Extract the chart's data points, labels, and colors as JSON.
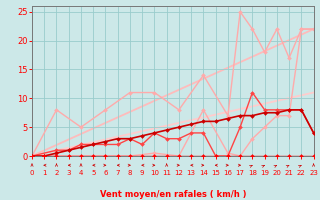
{
  "xlabel": "Vent moyen/en rafales ( km/h )",
  "bg_color": "#cce8e8",
  "grid_color": "#99cccc",
  "x_min": 0,
  "x_max": 23,
  "y_min": 0,
  "y_max": 26,
  "x_ticks": [
    0,
    1,
    2,
    3,
    4,
    5,
    6,
    7,
    8,
    9,
    10,
    11,
    12,
    13,
    14,
    15,
    16,
    17,
    18,
    19,
    20,
    21,
    22,
    23
  ],
  "y_ticks": [
    0,
    5,
    10,
    15,
    20,
    25
  ],
  "series": [
    {
      "x": [
        0,
        23
      ],
      "y": [
        0,
        22
      ],
      "color": "#ffbbbb",
      "lw": 1.3,
      "marker": null,
      "ms": 0,
      "zorder": 1
    },
    {
      "x": [
        0,
        23
      ],
      "y": [
        0,
        11
      ],
      "color": "#ffcccc",
      "lw": 1.3,
      "marker": null,
      "ms": 0,
      "zorder": 1
    },
    {
      "x": [
        0,
        2,
        4,
        6,
        8,
        10,
        12,
        14,
        16,
        17,
        18,
        19,
        20,
        21,
        22,
        23
      ],
      "y": [
        0,
        8,
        5,
        8,
        11,
        11,
        8,
        14,
        7,
        25,
        22,
        18,
        22,
        17,
        22,
        22
      ],
      "color": "#ffaaaa",
      "lw": 1.0,
      "marker": "D",
      "ms": 2,
      "zorder": 2
    },
    {
      "x": [
        0,
        2,
        4,
        6,
        8,
        10,
        12,
        14,
        16,
        17,
        18,
        19,
        20,
        21,
        22,
        23
      ],
      "y": [
        0,
        0,
        0,
        0,
        0,
        0.5,
        0,
        8,
        0.5,
        0,
        3,
        5,
        7,
        7,
        22,
        22
      ],
      "color": "#ffaaaa",
      "lw": 1.0,
      "marker": "D",
      "ms": 2,
      "zorder": 2
    },
    {
      "x": [
        0,
        2,
        3,
        4,
        5,
        6,
        7,
        8,
        9,
        10,
        11,
        12,
        13,
        14,
        15,
        16,
        17,
        18,
        19,
        20,
        21,
        22,
        23
      ],
      "y": [
        0,
        1,
        1,
        2,
        2,
        2,
        2,
        3,
        2,
        4,
        3,
        3,
        4,
        4,
        0,
        0,
        5,
        11,
        8,
        8,
        8,
        8,
        4
      ],
      "color": "#ff4444",
      "lw": 1.0,
      "marker": "D",
      "ms": 2,
      "zorder": 3
    },
    {
      "x": [
        0,
        1,
        2,
        3,
        4,
        5,
        6,
        7,
        8,
        9,
        10,
        11,
        12,
        13,
        14,
        15,
        16,
        17,
        18,
        19,
        20,
        21,
        22,
        23
      ],
      "y": [
        0,
        0,
        0.5,
        1,
        1.5,
        2,
        2.5,
        3,
        3.0,
        3.5,
        4.0,
        4.5,
        5.0,
        5.5,
        6.0,
        6.0,
        6.5,
        7.0,
        7.0,
        7.5,
        7.5,
        8.0,
        8.0,
        4.0
      ],
      "color": "#cc0000",
      "lw": 1.2,
      "marker": "D",
      "ms": 2,
      "zorder": 4
    },
    {
      "x": [
        0,
        1,
        2,
        3,
        4,
        5,
        6,
        7,
        8,
        9,
        10,
        11,
        12,
        13,
        14,
        15,
        16,
        17,
        18,
        19,
        20,
        21,
        22,
        23
      ],
      "y": [
        0,
        0,
        0,
        0,
        0,
        0,
        0,
        0,
        0,
        0,
        0,
        0,
        0,
        0,
        0,
        0,
        0,
        0,
        0,
        0,
        0,
        0,
        0,
        0
      ],
      "color": "#ff0000",
      "lw": 1.0,
      "marker": "D",
      "ms": 2,
      "zorder": 5
    }
  ],
  "arrow_dirs_deg": [
    180,
    270,
    180,
    270,
    180,
    270,
    90,
    270,
    90,
    270,
    90,
    180,
    90,
    270,
    90,
    270,
    90,
    90,
    135,
    135,
    135,
    135,
    135,
    180
  ],
  "xlabel_color": "#ff0000",
  "tick_color": "#ff0000",
  "axis_color": "#777777"
}
